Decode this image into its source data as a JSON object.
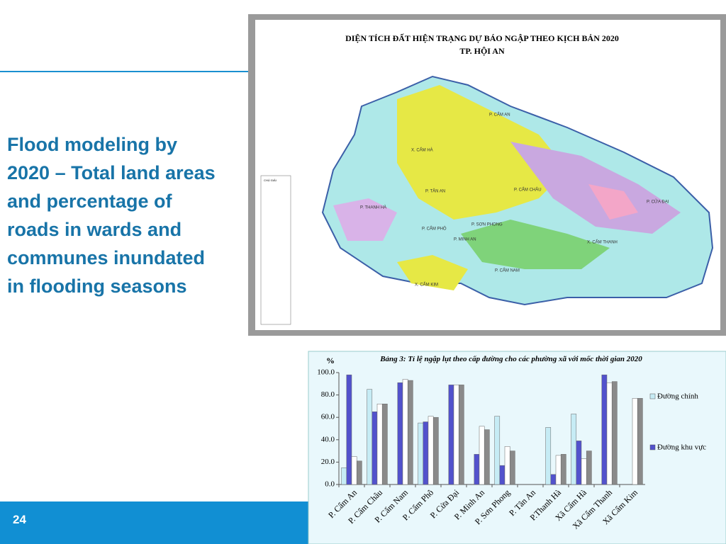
{
  "slide": {
    "heading": "Flood modeling by 2020 – Total land areas and percentage of roads in wards and communes inundated in flooding seasons",
    "page_number": "24"
  },
  "map": {
    "title": "DIỆN TÍCH ĐẤT HIỆN TRẠNG DỰ BÁO NGẬP THEO KỊCH BẢN 2020",
    "subtitle": "TP. HỘI AN",
    "labels": [
      "X. CẨM HÀ",
      "P. TÂN AN",
      "P. THANH HÀ",
      "P. CẨM PHÔ",
      "P. SƠN PHONG",
      "P. MINH AN",
      "X. CẨM THANH",
      "P. CẨM NAM",
      "X. CẨM KIM",
      "P. CẨM CHÂU",
      "P. CỬA ĐẠI",
      "P. CẨM AN"
    ],
    "legend_title": "CHÚ GIẢI"
  },
  "chart_data": {
    "type": "bar",
    "title": "Bảng 3: Tỉ lệ ngập lụt theo cấp đường cho các phường xã với mốc thời gian 2020",
    "ylabel": "%",
    "categories": [
      "P. Cẩm An",
      "P. Cẩm Châu",
      "P. Cẩm Nam",
      "P. Cẩm Phô",
      "P. Cửa Đại",
      "P. Minh An",
      "P. Sơn Phong",
      "P. Tân An",
      "P.Thanh Hà",
      "Xã Cẩm Hà",
      "Xã Cẩm Thanh",
      "Xã Cẩm Kim"
    ],
    "series": [
      {
        "name": "Đường chính",
        "color": "#c6ecf5",
        "values": [
          15,
          85,
          0,
          55,
          0,
          0,
          61,
          0,
          51,
          63,
          0,
          0
        ]
      },
      {
        "name": "Đường khu vực",
        "color": "#5252cc",
        "values": [
          98,
          65,
          91,
          56,
          89,
          27,
          17,
          0,
          9,
          39,
          98,
          0
        ]
      },
      {
        "name": null,
        "color": "#ffffff",
        "values": [
          25,
          72,
          94,
          61,
          89,
          52,
          34,
          0,
          26,
          23,
          91,
          77
        ]
      },
      {
        "name": null,
        "color": "#8a8a8a",
        "values": [
          21,
          72,
          93,
          60,
          89,
          49,
          30,
          0,
          27,
          30,
          92,
          77
        ]
      }
    ],
    "ylim": [
      0,
      100
    ],
    "yticks": [
      {
        "value": 0,
        "label": "0.0"
      },
      {
        "value": 20,
        "label": "20.0"
      },
      {
        "value": 40,
        "label": "40.0"
      },
      {
        "value": 60,
        "label": "60.0"
      },
      {
        "value": 80,
        "label": "80.0"
      },
      {
        "value": 100,
        "label": "100.0"
      }
    ],
    "grid": false
  }
}
